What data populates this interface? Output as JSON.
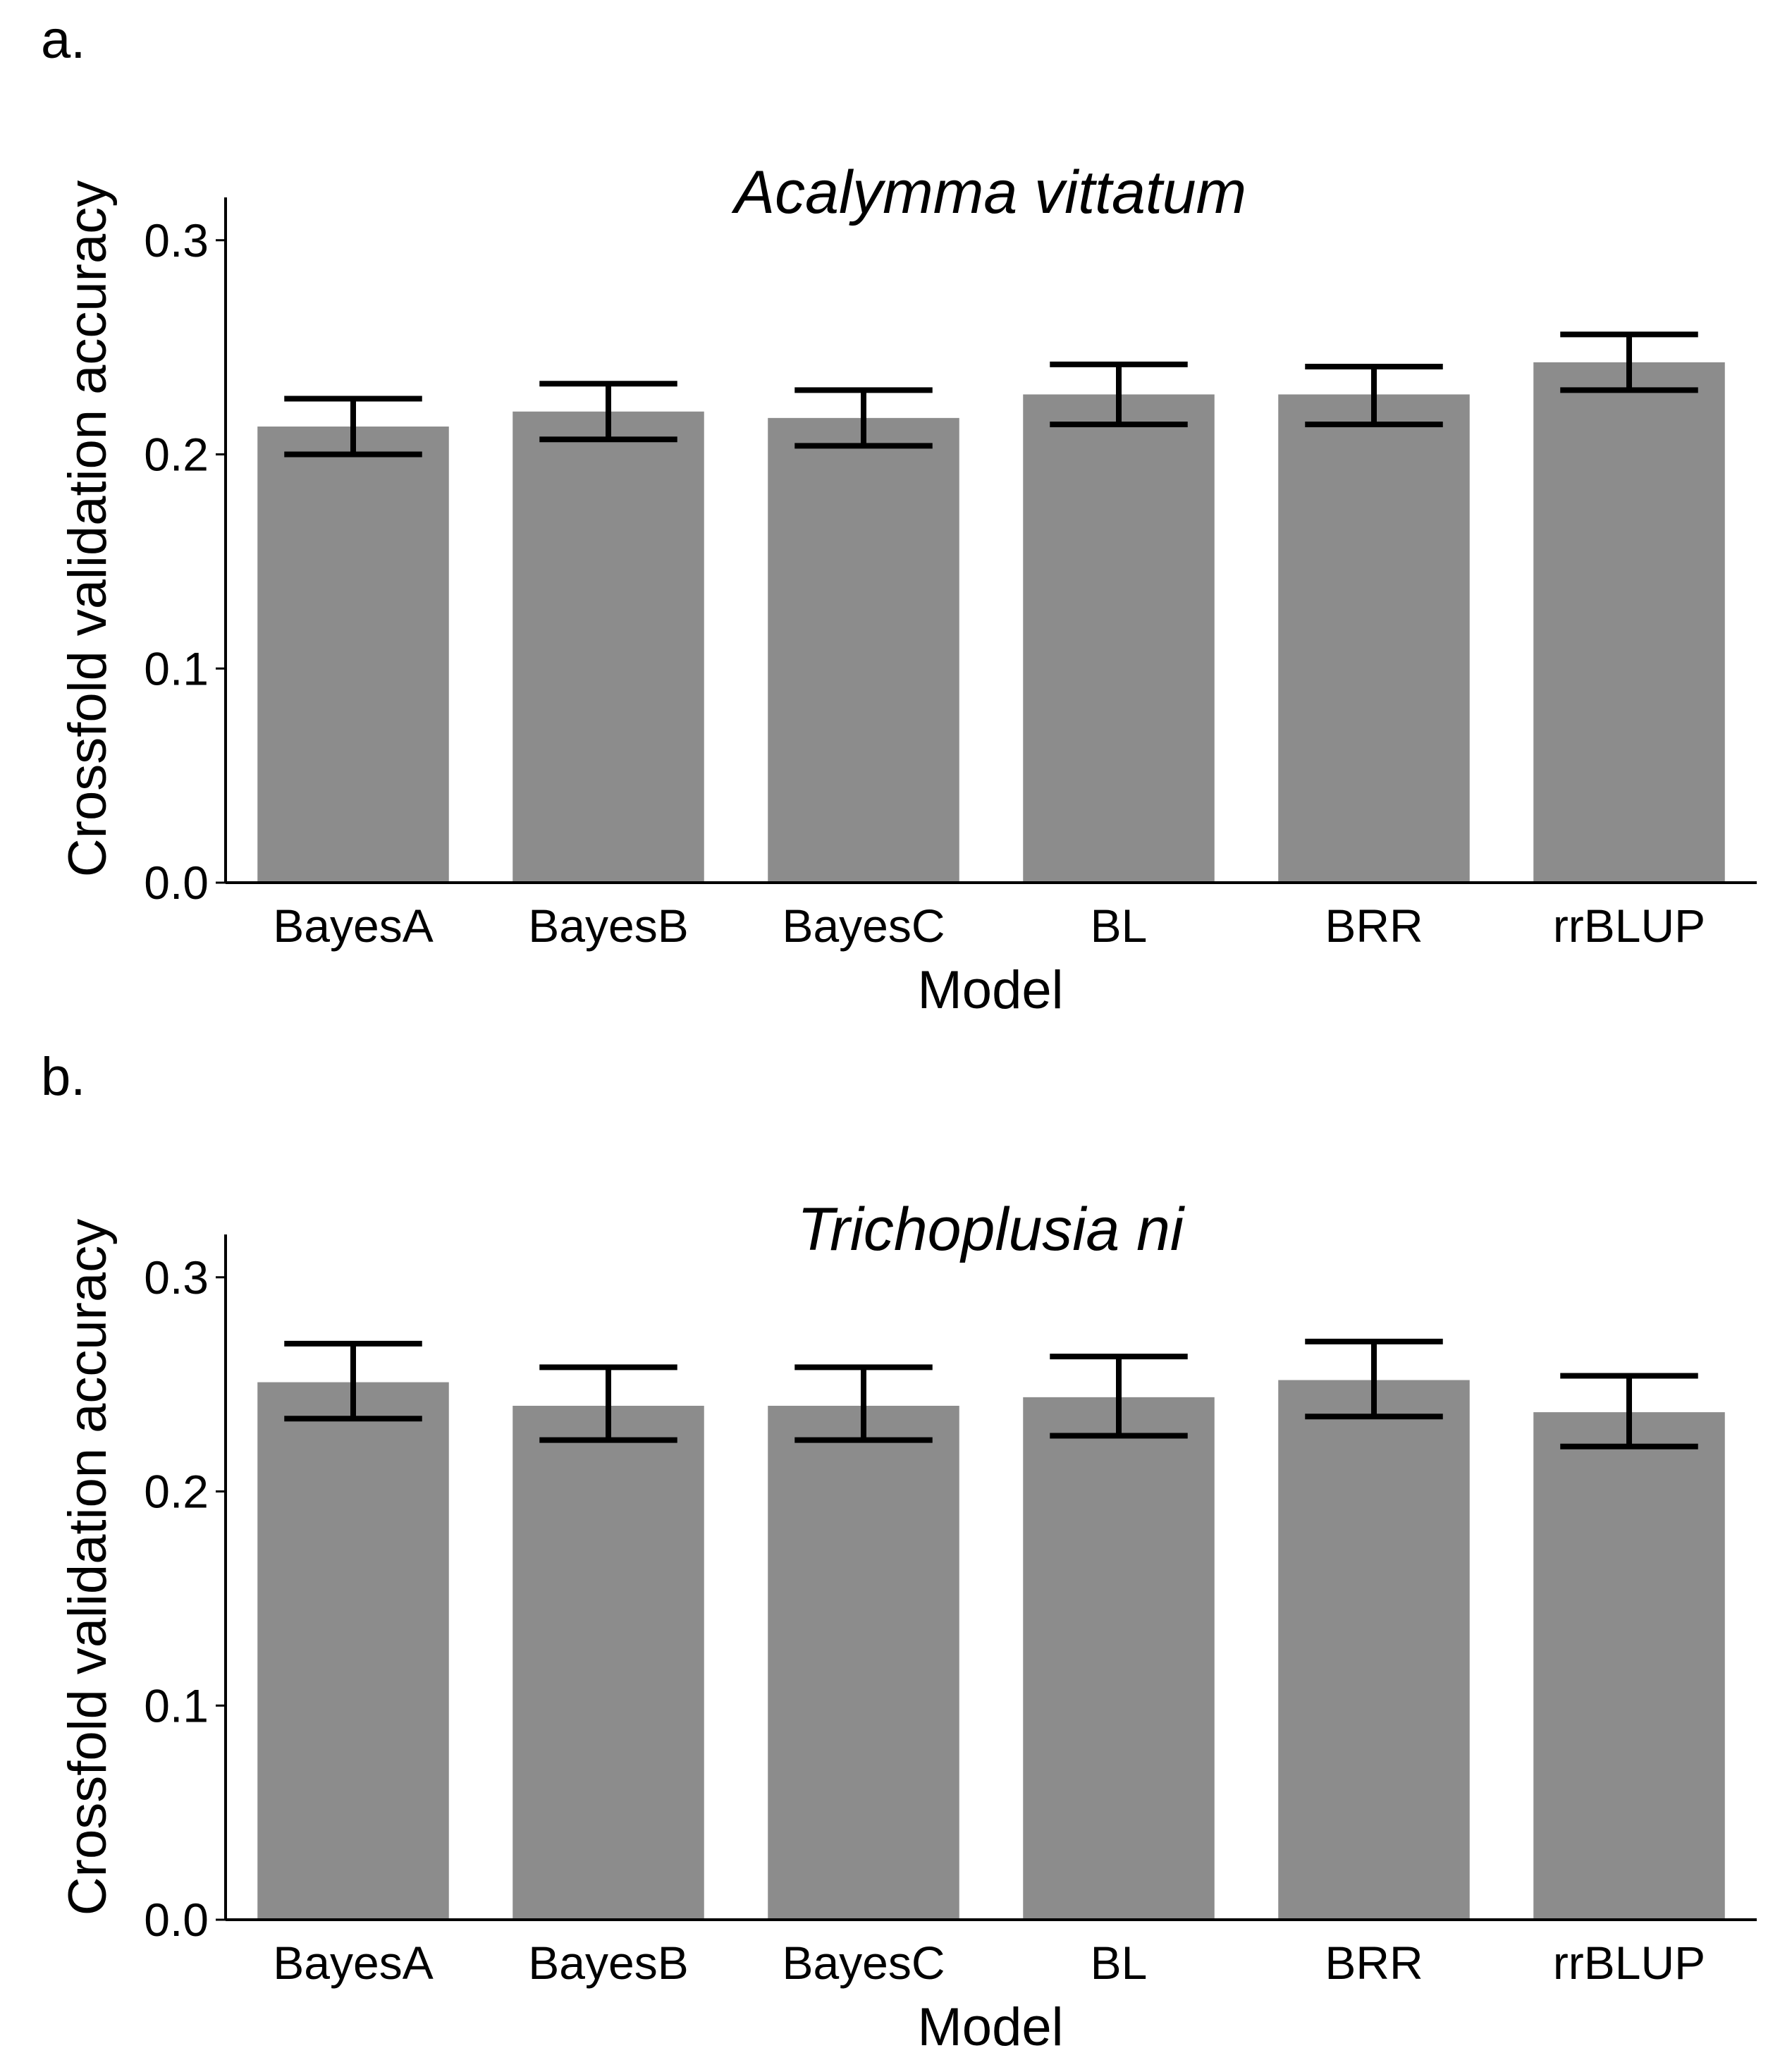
{
  "figure": {
    "bar_color": "#8c8c8c",
    "error_bar_color": "#000000",
    "axis_color": "#000000"
  },
  "chart_data": [
    {
      "type": "bar",
      "panel_label": "a.",
      "title": "Acalymma vittatum",
      "xlabel": "Model",
      "ylabel": "Crossfold validation accuracy",
      "ylim": [
        0,
        0.32
      ],
      "yticks": [
        0.0,
        0.1,
        0.2,
        0.3
      ],
      "ytick_labels": [
        "0.0",
        "0.1",
        "0.2",
        "0.3"
      ],
      "categories": [
        "BayesA",
        "BayesB",
        "BayesC",
        "BL",
        "BRR",
        "rrBLUP"
      ],
      "values": [
        0.213,
        0.22,
        0.217,
        0.228,
        0.228,
        0.243
      ],
      "error_low": [
        0.2,
        0.207,
        0.204,
        0.214,
        0.214,
        0.23
      ],
      "error_high": [
        0.226,
        0.233,
        0.23,
        0.242,
        0.241,
        0.256
      ],
      "grid": false,
      "legend": "none"
    },
    {
      "type": "bar",
      "panel_label": "b.",
      "title": "Trichoplusia ni",
      "xlabel": "Model",
      "ylabel": "Crossfold validation accuracy",
      "ylim": [
        0,
        0.32
      ],
      "yticks": [
        0.0,
        0.1,
        0.2,
        0.3
      ],
      "ytick_labels": [
        "0.0",
        "0.1",
        "0.2",
        "0.3"
      ],
      "categories": [
        "BayesA",
        "BayesB",
        "BayesC",
        "BL",
        "BRR",
        "rrBLUP"
      ],
      "values": [
        0.251,
        0.24,
        0.24,
        0.244,
        0.252,
        0.237
      ],
      "error_low": [
        0.234,
        0.224,
        0.224,
        0.226,
        0.235,
        0.221
      ],
      "error_high": [
        0.269,
        0.258,
        0.258,
        0.263,
        0.27,
        0.254
      ],
      "grid": false,
      "legend": "none"
    }
  ]
}
